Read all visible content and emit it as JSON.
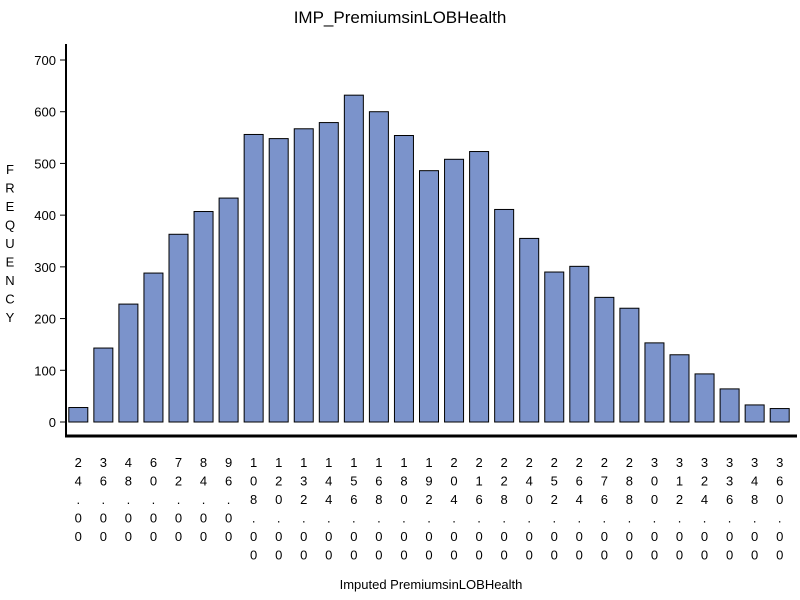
{
  "chart_data": {
    "type": "bar",
    "title": "IMP_PremiumsinLOBHealth",
    "xlabel": "Imputed  PremiumsinLOBHealth",
    "ylabel": "FREQUENCY",
    "ylim": [
      0,
      700
    ],
    "yticks": [
      0,
      100,
      200,
      300,
      400,
      500,
      600,
      700
    ],
    "grid": false,
    "bar_color": "#7b93cb",
    "categories": [
      "24.00",
      "36.00",
      "48.00",
      "60.00",
      "72.00",
      "84.00",
      "96.00",
      "108.00",
      "120.00",
      "132.00",
      "144.00",
      "156.00",
      "168.00",
      "180.00",
      "192.00",
      "204.00",
      "216.00",
      "228.00",
      "240.00",
      "252.00",
      "264.00",
      "276.00",
      "288.00",
      "300.00",
      "312.00",
      "324.00",
      "336.00",
      "348.00",
      "360.00"
    ],
    "values": [
      28,
      143,
      228,
      288,
      363,
      407,
      433,
      556,
      548,
      567,
      579,
      632,
      600,
      554,
      486,
      508,
      523,
      411,
      355,
      290,
      301,
      241,
      220,
      153,
      130,
      93,
      64,
      33,
      26
    ]
  }
}
